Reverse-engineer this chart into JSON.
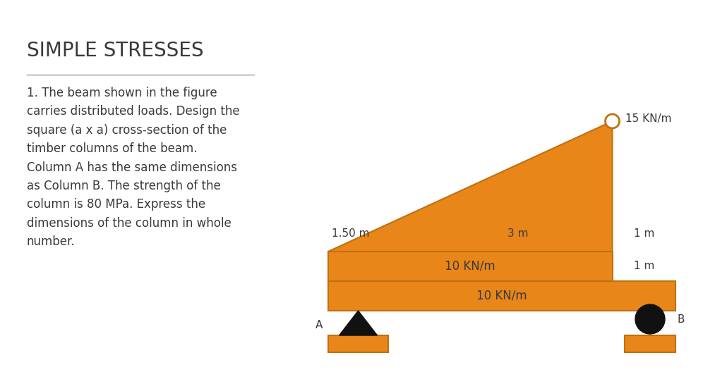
{
  "title": "SIMPLE STRESSES",
  "title_color": "#3a3a3a",
  "bg_color": "#ffffff",
  "text_color": "#3a3a3a",
  "orange_color": "#E8861A",
  "orange_edge": "#C07010",
  "black_color": "#111111",
  "problem_text": "1. The beam shown in the figure\ncarries distributed loads. Design the\nsquare (a x a) cross-section of the\ntimber columns of the beam.\nColumn A has the same dimensions\nas Column B. The strength of the\ncolumn is 80 MPa. Express the\ndimensions of the column in whole\nnumber.",
  "label_15": "15 KN/m",
  "label_10a": "10 KN/m",
  "label_10b": "10 KN/m",
  "label_150": "1.50 m",
  "label_3m": "3 m",
  "label_1m_top": "1 m",
  "label_1m_right": "1 m",
  "label_A": "A",
  "label_B": "B",
  "line_color": "#999999",
  "title_fontsize": 20,
  "text_fontsize": 12,
  "diagram_fontsize": 11
}
